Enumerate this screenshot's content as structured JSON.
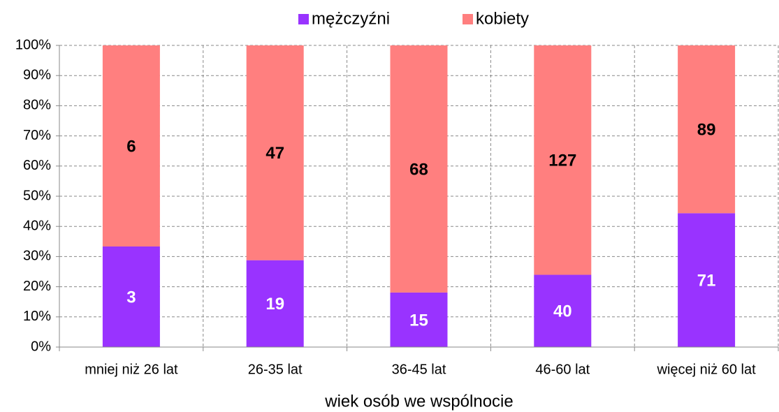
{
  "chart_data": {
    "type": "bar",
    "stacking": "percent",
    "x_label": "wiek osób we wspólnocie",
    "categories": [
      "mniej niż 26 lat",
      "26-35 lat",
      "36-45 lat",
      "46-60 lat",
      "więcej niż 60 lat"
    ],
    "series": [
      {
        "name": "mężczyźni",
        "color": "#9933ff",
        "label_color": "#ffffff",
        "values": [
          3,
          19,
          15,
          40,
          71
        ]
      },
      {
        "name": "kobiety",
        "color": "#ff7f7f",
        "label_color": "#000000",
        "values": [
          6,
          47,
          68,
          127,
          89
        ]
      }
    ],
    "ylim": [
      0,
      100
    ],
    "yticks": [
      {
        "value": 0,
        "label": "0%"
      },
      {
        "value": 10,
        "label": "10%"
      },
      {
        "value": 20,
        "label": "20%"
      },
      {
        "value": 30,
        "label": "30%"
      },
      {
        "value": 40,
        "label": "40%"
      },
      {
        "value": 50,
        "label": "50%"
      },
      {
        "value": 60,
        "label": "60%"
      },
      {
        "value": 70,
        "label": "70%"
      },
      {
        "value": 80,
        "label": "80%"
      },
      {
        "value": 90,
        "label": "90%"
      },
      {
        "value": 100,
        "label": "100%"
      }
    ],
    "grid": true,
    "legend": "top"
  }
}
